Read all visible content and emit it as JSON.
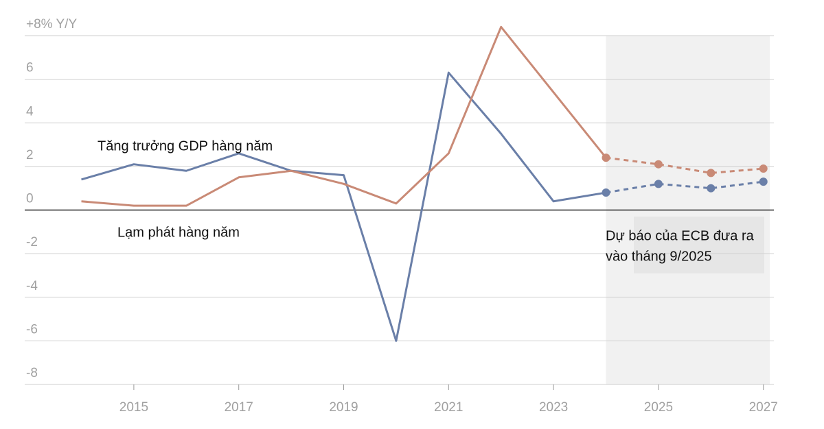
{
  "chart_data": {
    "type": "line",
    "x": [
      2014,
      2015,
      2016,
      2017,
      2018,
      2019,
      2020,
      2021,
      2022,
      2023,
      2024,
      2025,
      2026,
      2027
    ],
    "series": [
      {
        "name": "Tăng trưởng GDP hàng năm",
        "color": "#6a7fa8",
        "values": [
          1.4,
          2.1,
          1.8,
          2.6,
          1.8,
          1.6,
          -6.0,
          6.3,
          3.5,
          0.4,
          0.8,
          1.2,
          1.0,
          1.3
        ]
      },
      {
        "name": "Lạm phát hàng năm",
        "color": "#c98a76",
        "values": [
          0.4,
          0.2,
          0.2,
          1.5,
          1.8,
          1.2,
          0.3,
          2.6,
          8.4,
          5.4,
          2.4,
          2.1,
          1.7,
          1.9
        ]
      }
    ],
    "forecast_start": 2024,
    "forecast_label": [
      "Dự báo của ECB đưa ra",
      "vào tháng 9/2025"
    ],
    "xlim": [
      2012.92,
      2027.2
    ],
    "ylim": [
      -8,
      8
    ],
    "xticks": [
      2015,
      2017,
      2019,
      2021,
      2023,
      2025,
      2027
    ],
    "yticks": [
      {
        "value": 8,
        "label": "+8% Y/Y"
      },
      6,
      4,
      2,
      0,
      -2,
      -4,
      -6,
      -8
    ],
    "grid": true
  }
}
